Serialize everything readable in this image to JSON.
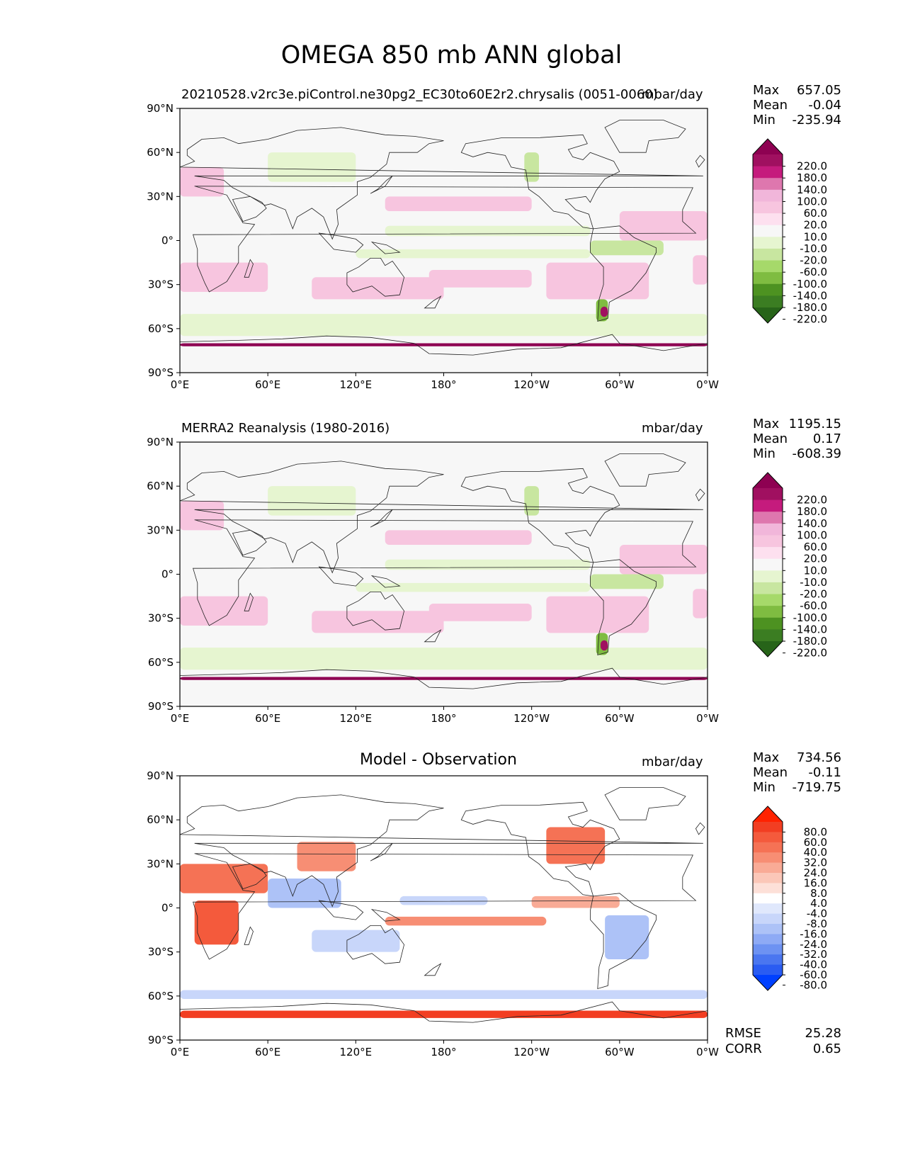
{
  "figure": {
    "title": "OMEGA 850 mb ANN global"
  },
  "axes": {
    "lat_ticks": [
      "90°N",
      "60°N",
      "30°N",
      "0°",
      "30°S",
      "60°S",
      "90°S"
    ],
    "lon_ticks": [
      "0°E",
      "60°E",
      "120°E",
      "180°",
      "120°W",
      "60°W",
      "0°W"
    ]
  },
  "panels": [
    {
      "left_title": "20210528.v2rc3e.piControl.ne30pg2_EC30to60E2r2.chrysalis (0051-0060)",
      "center_title": "",
      "units": "mbar/day",
      "stats": {
        "max_label": "Max",
        "max": "657.05",
        "mean_label": "Mean",
        "mean": "-0.04",
        "min_label": "Min",
        "min": "-235.94"
      },
      "colorbar_ticks": [
        "220.0",
        "180.0",
        "140.0",
        "100.0",
        "60.0",
        "20.0",
        "10.0",
        "-10.0",
        "-20.0",
        "-60.0",
        "-100.0",
        "-140.0",
        "-180.0",
        "-220.0"
      ]
    },
    {
      "left_title": "MERRA2 Reanalysis (1980-2016)",
      "center_title": "",
      "units": "mbar/day",
      "stats": {
        "max_label": "Max",
        "max": "1195.15",
        "mean_label": "Mean",
        "mean": "0.17",
        "min_label": "Min",
        "min": "-608.39"
      },
      "colorbar_ticks": [
        "220.0",
        "180.0",
        "140.0",
        "100.0",
        "60.0",
        "20.0",
        "10.0",
        "-10.0",
        "-20.0",
        "-60.0",
        "-100.0",
        "-140.0",
        "-180.0",
        "-220.0"
      ]
    },
    {
      "left_title": "",
      "center_title": "Model - Observation",
      "units": "mbar/day",
      "stats": {
        "max_label": "Max",
        "max": "734.56",
        "mean_label": "Mean",
        "mean": "-0.11",
        "min_label": "Min",
        "min": "-719.75"
      },
      "colorbar_ticks": [
        "80.0",
        "60.0",
        "40.0",
        "32.0",
        "24.0",
        "16.0",
        "8.0",
        "4.0",
        "-4.0",
        "-8.0",
        "-16.0",
        "-24.0",
        "-32.0",
        "-40.0",
        "-60.0",
        "-80.0"
      ],
      "rmse_label": "RMSE",
      "rmse": "25.28",
      "corr_label": "CORR",
      "corr": "0.65"
    }
  ],
  "chart_data": {
    "type": "heatmap",
    "title": "OMEGA 850 mb ANN global",
    "variable": "OMEGA 850 mb",
    "units": "mbar/day",
    "x_range": [
      0,
      360
    ],
    "y_range": [
      -90,
      90
    ],
    "xlabel": "",
    "ylabel": "",
    "model_levels": [
      -220,
      -180,
      -140,
      -100,
      -60,
      -20,
      -10,
      10,
      20,
      60,
      100,
      140,
      180,
      220
    ],
    "diff_levels": [
      -80,
      -60,
      -40,
      -32,
      -24,
      -16,
      -8,
      -4,
      4,
      8,
      16,
      24,
      32,
      40,
      60,
      80
    ],
    "model_colors": [
      "#276419",
      "#3b7d22",
      "#4d9221",
      "#7fbc41",
      "#a6d96a",
      "#c8e6a0",
      "#e6f5d0",
      "#f7f7f7",
      "#fde0ef",
      "#f7c5df",
      "#f1b6da",
      "#de77ae",
      "#c51b7d",
      "#a01060",
      "#8e0152"
    ],
    "diff_colors": [
      "#0040ff",
      "#2a5cf2",
      "#4a76f0",
      "#6d92f2",
      "#8eaaf5",
      "#adc2f7",
      "#c8d6fa",
      "#e0e8fc",
      "#ffffff",
      "#fde0d8",
      "#fbc7b8",
      "#f9ab96",
      "#f78e74",
      "#f57255",
      "#f45a3c",
      "#f23e22",
      "#ff2200"
    ]
  }
}
